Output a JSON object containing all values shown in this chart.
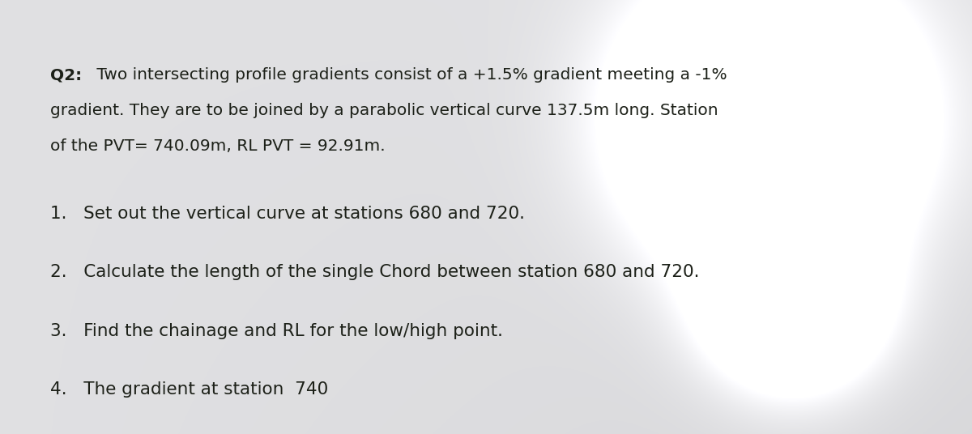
{
  "background_color": "#d8d8dc",
  "paper_color": "#e8e8ec",
  "text_color": "#1c2018",
  "fig_width": 12.0,
  "fig_height": 5.36,
  "dpi": 100,
  "title_bold": "Q2:",
  "title_rest_line1": " Two intersecting profile gradients consist of a +1.5% gradient meeting a -1%",
  "para_line2": "gradient. They are to be joined by a parabolic vertical curve 137.5m long. Station",
  "para_line3": "of the PVT= 740.09m, RL PVT = 92.91m.",
  "item1": "1.   Set out the vertical curve at stations 680 and 720.",
  "item2": "2.   Calculate the length of the single Chord between station 680 and 720.",
  "item3": "3.   Find the chainage and RL for the low/high point.",
  "item4": "4.   The gradient at station  740",
  "font_size_para": 14.5,
  "font_size_items": 15.5
}
